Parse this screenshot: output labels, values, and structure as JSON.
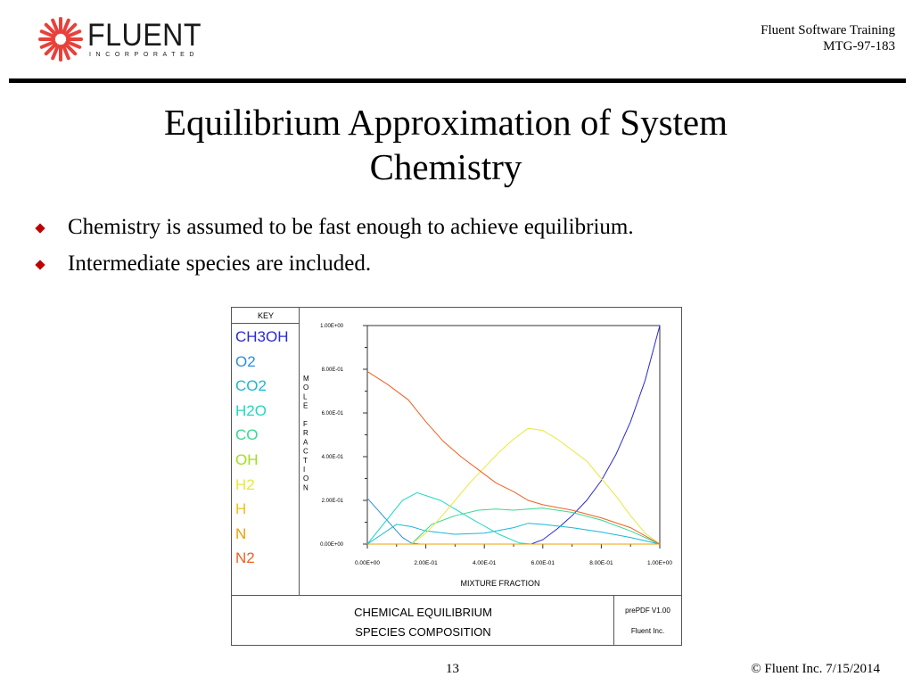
{
  "header": {
    "logo_text": "FLUENT",
    "logo_sub": "INCORPORATED",
    "line1": "Fluent Software Training",
    "line2": "MTG-97-183"
  },
  "slide": {
    "title_line1": "Equilibrium Approximation of System",
    "title_line2": "Chemistry",
    "bullets": [
      "Chemistry is assumed to be fast enough to achieve equilibrium.",
      "Intermediate species are included."
    ]
  },
  "figure": {
    "key_title": "KEY",
    "bottom_title_line1": "CHEMICAL EQUILIBRIUM",
    "bottom_title_line2": "SPECIES COMPOSITION",
    "version": "prePDF V1.00",
    "company": "Fluent Inc."
  },
  "chart_data": {
    "type": "line",
    "title": "",
    "xlabel": "MIXTURE FRACTION",
    "ylabel": "MOLE FRACTION",
    "xlim": [
      0,
      1
    ],
    "ylim": [
      0,
      1
    ],
    "x_ticks": [
      "0.00E+00",
      "2.00E-01",
      "4.00E-01",
      "6.00E-01",
      "8.00E-01",
      "1.00E+00"
    ],
    "y_ticks": [
      "0.00E+00",
      "2.00E-01",
      "4.00E-01",
      "6.00E-01",
      "8.00E-01",
      "1.00E+00"
    ],
    "legend": "left",
    "series": [
      {
        "name": "CH3OH",
        "color": "#2a2ad0",
        "x": [
          0,
          0.5,
          0.53,
          0.56,
          0.6,
          0.65,
          0.7,
          0.75,
          0.8,
          0.85,
          0.9,
          0.95,
          1.0
        ],
        "y": [
          0,
          0,
          0,
          0,
          0.02,
          0.07,
          0.13,
          0.2,
          0.29,
          0.41,
          0.56,
          0.75,
          1.0
        ]
      },
      {
        "name": "O2",
        "color": "#2a8fe0",
        "x": [
          0,
          0.04,
          0.08,
          0.12,
          0.15,
          0.18,
          1.0
        ],
        "y": [
          0.21,
          0.15,
          0.09,
          0.03,
          0.005,
          0,
          0
        ]
      },
      {
        "name": "CO2",
        "color": "#18b8d8",
        "x": [
          0,
          0.05,
          0.1,
          0.15,
          0.2,
          0.3,
          0.4,
          0.5,
          0.55,
          0.6,
          0.7,
          0.8,
          0.9,
          1.0
        ],
        "y": [
          0,
          0.045,
          0.09,
          0.08,
          0.06,
          0.045,
          0.05,
          0.075,
          0.095,
          0.09,
          0.075,
          0.055,
          0.03,
          0
        ]
      },
      {
        "name": "H2O",
        "color": "#22d8c0",
        "x": [
          0,
          0.06,
          0.12,
          0.17,
          0.25,
          0.35,
          0.45,
          0.52,
          0.56,
          0.6,
          1.0
        ],
        "y": [
          0,
          0.1,
          0.2,
          0.235,
          0.2,
          0.12,
          0.045,
          0.005,
          0,
          0,
          0
        ]
      },
      {
        "name": "CO",
        "color": "#38d890",
        "x": [
          0,
          0.15,
          0.22,
          0.3,
          0.38,
          0.44,
          0.5,
          0.55,
          0.6,
          0.7,
          0.8,
          0.9,
          1.0
        ],
        "y": [
          0,
          0,
          0.09,
          0.13,
          0.155,
          0.16,
          0.155,
          0.16,
          0.165,
          0.145,
          0.11,
          0.06,
          0
        ]
      },
      {
        "name": "OH",
        "color": "#a0e018",
        "x": [
          0,
          1.0
        ],
        "y": [
          0,
          0
        ]
      },
      {
        "name": "H2",
        "color": "#e8e840",
        "x": [
          0,
          0.15,
          0.2,
          0.25,
          0.3,
          0.35,
          0.4,
          0.45,
          0.5,
          0.55,
          0.6,
          0.65,
          0.7,
          0.75,
          0.8,
          0.85,
          0.9,
          0.95,
          1.0
        ],
        "y": [
          0,
          0,
          0.05,
          0.12,
          0.2,
          0.28,
          0.35,
          0.42,
          0.48,
          0.53,
          0.52,
          0.48,
          0.43,
          0.38,
          0.3,
          0.22,
          0.13,
          0.05,
          0
        ]
      },
      {
        "name": "H",
        "color": "#f0c020",
        "x": [
          0,
          1.0
        ],
        "y": [
          0,
          0
        ]
      },
      {
        "name": "N",
        "color": "#f0a000",
        "x": [
          0,
          1.0
        ],
        "y": [
          0,
          0
        ]
      },
      {
        "name": "N2",
        "color": "#f06020",
        "x": [
          0,
          0.07,
          0.14,
          0.2,
          0.26,
          0.32,
          0.38,
          0.44,
          0.5,
          0.55,
          0.6,
          0.7,
          0.8,
          0.9,
          1.0
        ],
        "y": [
          0.79,
          0.73,
          0.66,
          0.56,
          0.47,
          0.4,
          0.34,
          0.28,
          0.24,
          0.2,
          0.18,
          0.155,
          0.12,
          0.075,
          0
        ]
      }
    ]
  },
  "footer": {
    "page": "13",
    "copyright": "© Fluent Inc. 7/15/2014"
  },
  "colors": {
    "accent": "#e8403a",
    "bullet": "#c00000",
    "rule": "#000000"
  }
}
